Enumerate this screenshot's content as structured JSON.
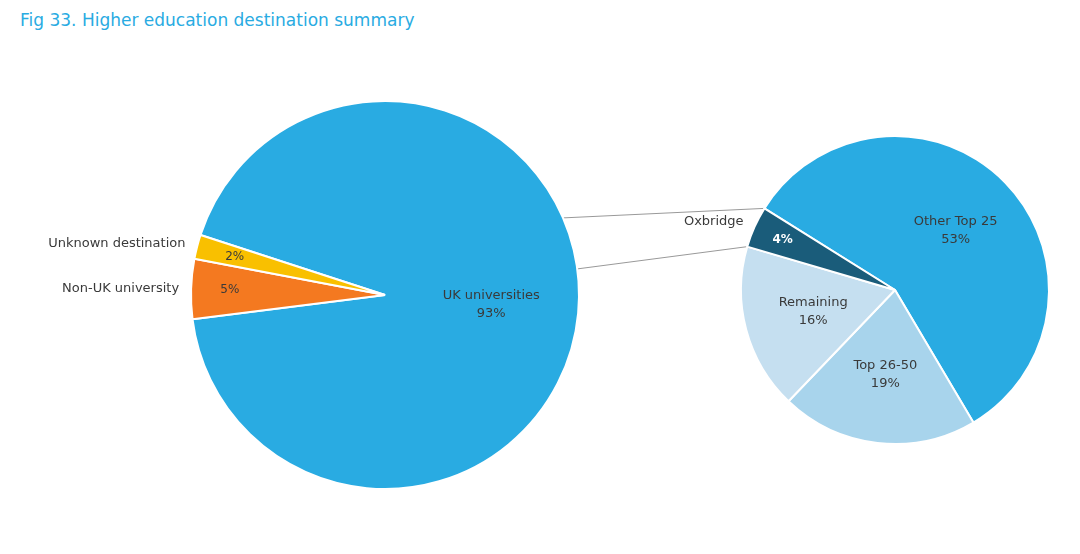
{
  "chart_data": [
    {
      "type": "pie",
      "title": "Fig 33. Higher education destination summary",
      "categories": [
        "UK universities",
        "Non-UK university",
        "Unknown destination"
      ],
      "values": [
        93,
        5,
        2
      ],
      "value_labels": [
        "93%",
        "5%",
        "2%"
      ],
      "colors": [
        "#29abe2",
        "#f47920",
        "#f9c000"
      ],
      "data_labels": true
    },
    {
      "type": "pie",
      "categories": [
        "Other Top 25",
        "Top 26-50",
        "Remaining",
        "Oxbridge"
      ],
      "values": [
        53,
        19,
        16,
        4
      ],
      "value_labels": [
        "53%",
        "19%",
        "16%",
        "4%"
      ],
      "colors": [
        "#29abe2",
        "#a8d4ec",
        "#c5dff0",
        "#1a5c7a"
      ],
      "data_labels": true
    }
  ]
}
